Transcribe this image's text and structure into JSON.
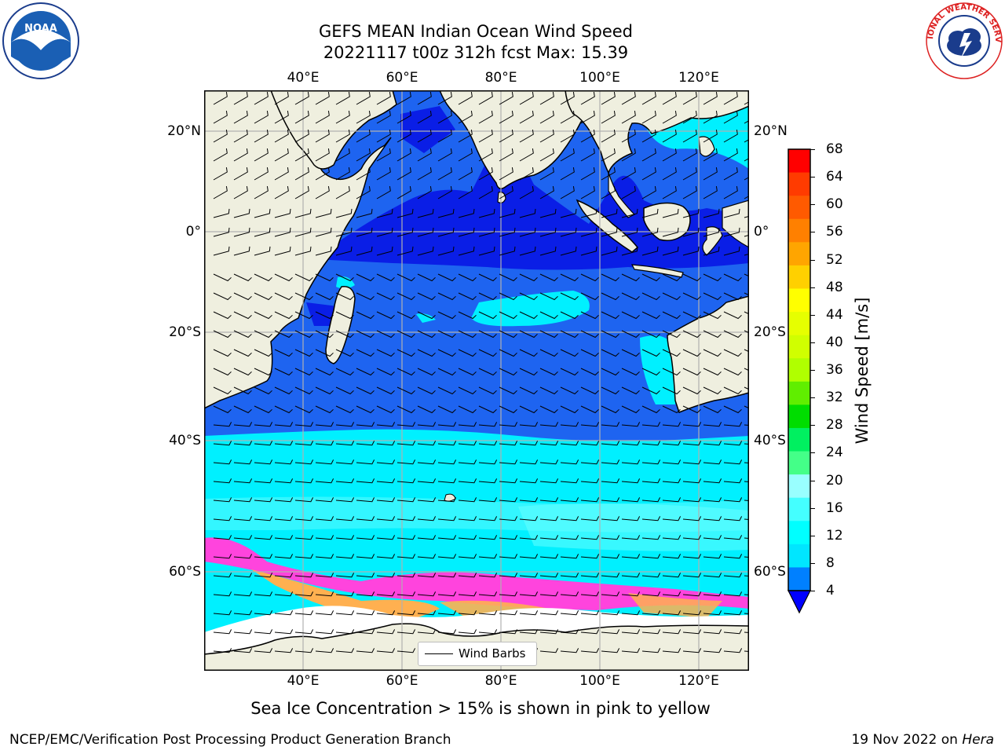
{
  "title": {
    "line1": "GEFS MEAN Indian Ocean Wind Speed",
    "line2": "20221117 t00z 312h fcst   Max: 15.39"
  },
  "lon_labels": [
    "40°E",
    "60°E",
    "80°E",
    "100°E",
    "120°E"
  ],
  "lat_labels": [
    "20°N",
    "0°",
    "20°S",
    "40°S",
    "60°S"
  ],
  "colorbar": {
    "label": "Wind Speed [m/s]",
    "ticks": [
      "68",
      "64",
      "60",
      "56",
      "52",
      "48",
      "44",
      "40",
      "36",
      "32",
      "28",
      "24",
      "20",
      "16",
      "12",
      "8",
      "4"
    ],
    "colors_top_to_bottom": [
      "#ff0000",
      "#ff3b00",
      "#ff5a00",
      "#ff8000",
      "#ffa500",
      "#ffd000",
      "#ffff00",
      "#e6ff00",
      "#d0ff00",
      "#b0ff00",
      "#60ee00",
      "#00dd00",
      "#00f060",
      "#44ff88",
      "#99ffff",
      "#44ffff",
      "#00ffff",
      "#00e6ff",
      "#0080ff"
    ],
    "extend_color": "#0000ff"
  },
  "legend": {
    "label": "Wind Barbs"
  },
  "caption": "Sea Ice Concentration > 15% is shown in pink to yellow",
  "footer": {
    "left": "NCEP/EMC/Verification Post Processing Product Generation Branch",
    "date": "19 Nov 2022 on ",
    "machine": "Hera"
  },
  "logos": {
    "left": "NOAA",
    "right": "NATIONAL WEATHER SERVICE"
  },
  "colors": {
    "land": "#efefdf",
    "ocean_base": "#1e64f0",
    "ocean_dark": "#0a1ee6",
    "cyan": "#00f0ff",
    "light_cyan": "#66ffff",
    "ice_pink": "#ff44dd",
    "ice_orange": "#ffb050",
    "grid": "#b0b0b0"
  }
}
